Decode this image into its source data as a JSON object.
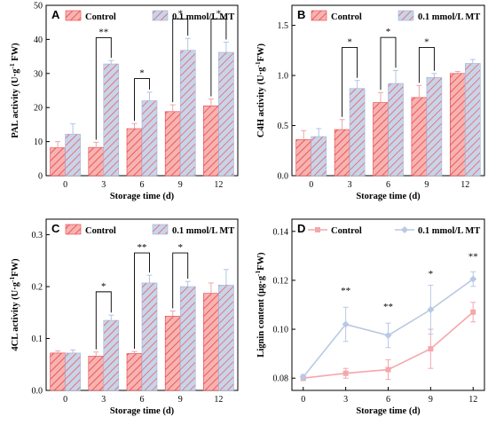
{
  "figure": {
    "colors": {
      "control_fill": "#f7b3b0",
      "control_hatch": "#e8404a",
      "mt_fill": "#c6d5ea",
      "mt_hatch": "#ff4040",
      "line_control": "#f4a7ad",
      "line_mt": "#b9c9e4"
    }
  },
  "chart_data": [
    {
      "panel": "A",
      "type": "bar",
      "xlabel": "Storage time (d)",
      "ylabel": "PAL activity (U·g⁻¹ FW)",
      "ylabel_parts": {
        "pre": "PAL activity (U·g",
        "sup": "-1",
        "post": " FW)"
      },
      "categories": [
        "0",
        "3",
        "6",
        "9",
        "12"
      ],
      "yticks": [
        "0",
        "10",
        "20",
        "30",
        "40",
        "50"
      ],
      "ylim": [
        0,
        50
      ],
      "legend": [
        "Control",
        "0.1 mmol/L MT"
      ],
      "series": [
        {
          "name": "Control",
          "values": [
            8.2,
            8.3,
            13.8,
            18.8,
            20.5
          ],
          "errors": [
            1.8,
            1.5,
            1.5,
            2.0,
            2.0
          ]
        },
        {
          "name": "0.1 mmol/L MT",
          "values": [
            12.2,
            32.8,
            22.0,
            36.8,
            36.2
          ],
          "errors": [
            3.0,
            1.0,
            2.5,
            3.5,
            3.0
          ]
        }
      ],
      "significance": [
        {
          "index": 1,
          "label": "**",
          "top": 40.5
        },
        {
          "index": 2,
          "label": "*",
          "top": 28.5
        },
        {
          "index": 3,
          "label": "*",
          "top": 46.0
        },
        {
          "index": 4,
          "label": "*",
          "top": 46.0
        }
      ]
    },
    {
      "panel": "B",
      "type": "bar",
      "xlabel": "Storage time (d)",
      "ylabel": "C4H activity (U·g⁻¹FW)",
      "ylabel_parts": {
        "pre": "C4H activity (U·g",
        "sup": "-1",
        "post": "FW)"
      },
      "categories": [
        "0",
        "3",
        "6",
        "9",
        "12"
      ],
      "yticks": [
        "0.0",
        "0.5",
        "1.0",
        "1.5"
      ],
      "ylim": [
        0,
        1.7
      ],
      "legend": [
        "Control",
        "0.1 mmol/L MT"
      ],
      "series": [
        {
          "name": "Control",
          "values": [
            0.36,
            0.46,
            0.73,
            0.78,
            1.02
          ],
          "errors": [
            0.09,
            0.1,
            0.1,
            0.12,
            0.02
          ]
        },
        {
          "name": "0.1 mmol/L MT",
          "values": [
            0.39,
            0.87,
            0.92,
            0.98,
            1.12
          ],
          "errors": [
            0.08,
            0.08,
            0.13,
            0.04,
            0.04
          ]
        }
      ],
      "significance": [
        {
          "index": 1,
          "label": "*",
          "top": 1.28
        },
        {
          "index": 2,
          "label": "*",
          "top": 1.38
        },
        {
          "index": 3,
          "label": "*",
          "top": 1.28
        }
      ]
    },
    {
      "panel": "C",
      "type": "bar",
      "xlabel": "Storage time (d)",
      "ylabel": "4CL activity (U·g⁻¹FW)",
      "ylabel_parts": {
        "pre": "4CL activity (U·g",
        "sup": "-1",
        "post": "FW)"
      },
      "categories": [
        "0",
        "3",
        "6",
        "9",
        "12"
      ],
      "yticks": [
        "0.0",
        "0.1",
        "0.2",
        "0.3"
      ],
      "ylim": [
        0,
        0.33
      ],
      "legend": [
        "Control",
        "0.1 mmol/L MT"
      ],
      "series": [
        {
          "name": "Control",
          "values": [
            0.072,
            0.066,
            0.071,
            0.143,
            0.187
          ],
          "errors": [
            0.004,
            0.008,
            0.004,
            0.01,
            0.02
          ]
        },
        {
          "name": "0.1 mmol/L MT",
          "values": [
            0.072,
            0.135,
            0.207,
            0.2,
            0.203
          ],
          "errors": [
            0.006,
            0.01,
            0.015,
            0.01,
            0.03
          ]
        }
      ],
      "significance": [
        {
          "index": 1,
          "label": "*",
          "top": 0.19
        },
        {
          "index": 2,
          "label": "**",
          "top": 0.265
        },
        {
          "index": 3,
          "label": "*",
          "top": 0.265
        }
      ]
    },
    {
      "panel": "D",
      "type": "line",
      "xlabel": "Storage time (d)",
      "ylabel": "Lignin content (μg·g⁻¹FW)",
      "ylabel_parts": {
        "pre": "Lignin content (μg·g",
        "sup": "-1",
        "post": "FW)"
      },
      "x": [
        0,
        3,
        6,
        9,
        12
      ],
      "xticks": [
        "0",
        "3",
        "6",
        "9",
        "12"
      ],
      "yticks": [
        "0.08",
        "0.10",
        "0.12",
        "0.14"
      ],
      "ylim": [
        0.075,
        0.145
      ],
      "xlim": [
        -0.8,
        12.8
      ],
      "legend": [
        "Control",
        "0.1 mmol/L MT"
      ],
      "series": [
        {
          "name": "Control",
          "values": [
            0.08,
            0.082,
            0.0835,
            0.092,
            0.107
          ],
          "errors": [
            0.001,
            0.002,
            0.004,
            0.008,
            0.004
          ]
        },
        {
          "name": "0.1 mmol/L MT",
          "values": [
            0.0805,
            0.102,
            0.0975,
            0.108,
            0.1205
          ],
          "errors": [
            0.001,
            0.007,
            0.005,
            0.01,
            0.003
          ]
        }
      ],
      "significance": [
        {
          "index": 1,
          "label": "**",
          "y": 0.1145
        },
        {
          "index": 2,
          "label": "**",
          "y": 0.108
        },
        {
          "index": 3,
          "label": "*",
          "y": 0.1215
        },
        {
          "index": 4,
          "label": "**",
          "y": 0.1285
        }
      ]
    }
  ]
}
